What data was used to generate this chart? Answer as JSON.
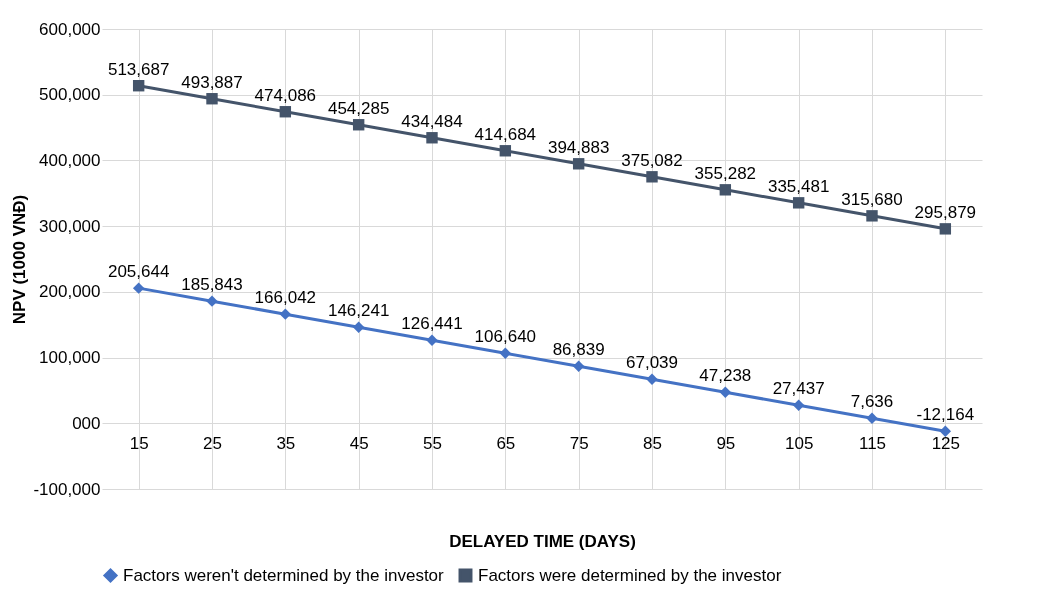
{
  "chart_data": {
    "type": "line",
    "xlabel": "DELAYED TIME (DAYS)",
    "ylabel": "NPV (1000 VNĐ)",
    "categories": [
      "15",
      "25",
      "35",
      "45",
      "55",
      "65",
      "75",
      "85",
      "95",
      "105",
      "115",
      "125"
    ],
    "series": [
      {
        "name": "Factors weren't determined by the investor",
        "color": "#4472c4",
        "marker": "diamond",
        "values": [
          205644,
          185843,
          166042,
          146241,
          126441,
          106640,
          86839,
          67039,
          47238,
          27437,
          7636,
          -12164
        ],
        "value_labels": [
          "205,644",
          "185,843",
          "166,042",
          "146,241",
          "126,441",
          "106,640",
          "86,839",
          "67,039",
          "47,238",
          "27,437",
          "7,636",
          "-12,164"
        ]
      },
      {
        "name": "Factors were determined by the investor",
        "color": "#44546a",
        "marker": "square",
        "values": [
          513687,
          493887,
          474086,
          454285,
          434484,
          414684,
          394883,
          375082,
          355282,
          335481,
          315680,
          295879
        ],
        "value_labels": [
          "513,687",
          "493,887",
          "474,086",
          "454,285",
          "434,484",
          "414,684",
          "394,883",
          "375,082",
          "355,282",
          "335,481",
          "315,680",
          "295,879"
        ]
      }
    ],
    "ylim": [
      -100000,
      600000
    ],
    "yticks": [
      {
        "value": -100000,
        "label": "-100,000"
      },
      {
        "value": 0,
        "label": "000"
      },
      {
        "value": 100000,
        "label": "100,000"
      },
      {
        "value": 200000,
        "label": "200,000"
      },
      {
        "value": 300000,
        "label": "300,000"
      },
      {
        "value": 400000,
        "label": "400,000"
      },
      {
        "value": 500000,
        "label": "500,000"
      },
      {
        "value": 600000,
        "label": "600,000"
      }
    ],
    "grid": true,
    "legend": "bottom",
    "line_style": "solid"
  }
}
